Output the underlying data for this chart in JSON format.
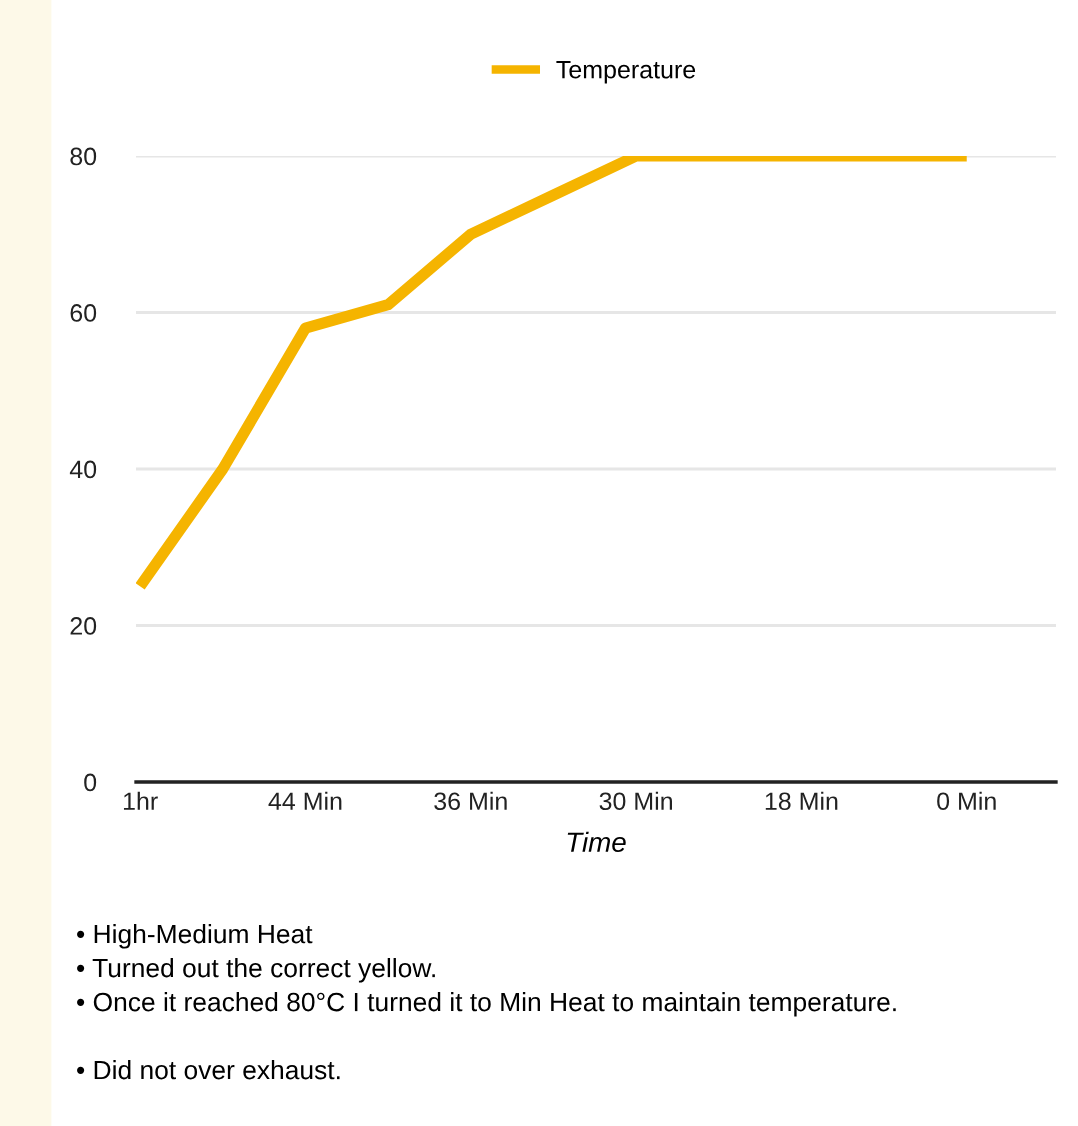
{
  "chart_data": {
    "type": "line",
    "xlabel": "Time",
    "categories": [
      "1hr",
      null,
      "44 Min",
      null,
      "36 Min",
      null,
      "30 Min",
      null,
      "18 Min",
      null,
      "0 Min"
    ],
    "series": [
      {
        "name": "Temperature",
        "color": "#f5b400",
        "values": [
          25,
          40,
          58,
          61,
          70,
          75,
          80,
          80,
          80,
          80,
          80
        ]
      }
    ],
    "ylim": [
      0,
      80
    ],
    "yticks": [
      0,
      20,
      40,
      60,
      80
    ],
    "grid": "y",
    "legend": "top",
    "marker": "none",
    "line_style": "solid",
    "annotations": [
      "• High-Medium Heat",
      "• Turned out the correct yellow.",
      "• Once it reached 80°C I turned it to Min Heat to maintain temperature.",
      "• Did not over exhaust."
    ]
  }
}
